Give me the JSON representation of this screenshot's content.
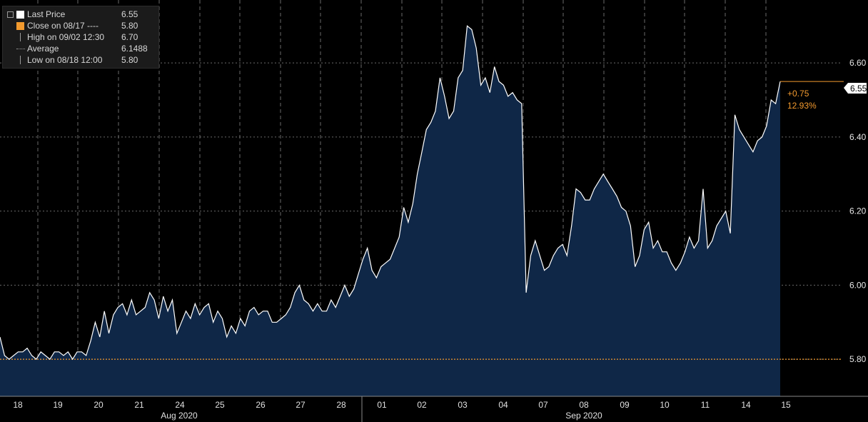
{
  "legend": {
    "last_price": {
      "label": "Last Price",
      "value": "6.55"
    },
    "close": {
      "label": "Close on 08/17 ----",
      "value": "5.80"
    },
    "high": {
      "label": "High on 09/02 12:30",
      "value": "6.70"
    },
    "average": {
      "label": "Average",
      "value": "6.1488"
    },
    "low": {
      "label": "Low on 08/18 12:00",
      "value": "5.80"
    }
  },
  "colors": {
    "line": "#ffffff",
    "fill": "#0f2747",
    "close_line": "#f39a2e",
    "grid": "#6a6a6a",
    "background": "#000000"
  },
  "annotations": {
    "change_abs": "+0.75",
    "change_pct": "12.93%",
    "last_label": "6.55"
  },
  "chart_data": {
    "type": "area",
    "y_ticks": [
      "5.80",
      "6.00",
      "6.20",
      "6.40",
      "6.60"
    ],
    "ylim": [
      5.7,
      6.77
    ],
    "x_tick_labels": [
      "18",
      "19",
      "20",
      "21",
      "24",
      "25",
      "26",
      "27",
      "28",
      "01",
      "02",
      "03",
      "04",
      "07",
      "08",
      "09",
      "10",
      "11",
      "14",
      "15"
    ],
    "month_labels": [
      "Aug 2020",
      "Sep 2020"
    ],
    "close_reference": 5.8,
    "last_price": 6.55,
    "grid": true,
    "series": [
      {
        "values": [
          5.86,
          5.81,
          5.8,
          5.81,
          5.82,
          5.82,
          5.83,
          5.81,
          5.8,
          5.82,
          5.81,
          5.8,
          5.82,
          5.82,
          5.81,
          5.82,
          5.8,
          5.82,
          5.82,
          5.81,
          5.85,
          5.9,
          5.86,
          5.93,
          5.87,
          5.92,
          5.94,
          5.95,
          5.92,
          5.96,
          5.92,
          5.93,
          5.94,
          5.98,
          5.96,
          5.91,
          5.97,
          5.93,
          5.96,
          5.87,
          5.9,
          5.93,
          5.91,
          5.95,
          5.92,
          5.94,
          5.95,
          5.9,
          5.93,
          5.91,
          5.86,
          5.89,
          5.87,
          5.91,
          5.89,
          5.93,
          5.94,
          5.92,
          5.93,
          5.93,
          5.9,
          5.9,
          5.91,
          5.92,
          5.94,
          5.98,
          6.0,
          5.96,
          5.95,
          5.93,
          5.95,
          5.93,
          5.93,
          5.96,
          5.94,
          5.97,
          6.0,
          5.97,
          5.99,
          6.03,
          6.07,
          6.1,
          6.04,
          6.02,
          6.05,
          6.06,
          6.07,
          6.1,
          6.13,
          6.21,
          6.17,
          6.22,
          6.3,
          6.36,
          6.42,
          6.44,
          6.47,
          6.56,
          6.51,
          6.45,
          6.47,
          6.56,
          6.58,
          6.7,
          6.69,
          6.64,
          6.54,
          6.56,
          6.52,
          6.59,
          6.55,
          6.54,
          6.51,
          6.52,
          6.5,
          6.49,
          5.98,
          6.08,
          6.12,
          6.08,
          6.04,
          6.05,
          6.08,
          6.1,
          6.11,
          6.08,
          6.16,
          6.26,
          6.25,
          6.23,
          6.23,
          6.26,
          6.28,
          6.3,
          6.28,
          6.26,
          6.24,
          6.21,
          6.2,
          6.16,
          6.05,
          6.08,
          6.15,
          6.17,
          6.1,
          6.12,
          6.09,
          6.09,
          6.06,
          6.04,
          6.06,
          6.09,
          6.13,
          6.1,
          6.12,
          6.26,
          6.1,
          6.12,
          6.16,
          6.18,
          6.2,
          6.14,
          6.46,
          6.42,
          6.4,
          6.38,
          6.36,
          6.39,
          6.4,
          6.43,
          6.5,
          6.49,
          6.55
        ]
      }
    ]
  }
}
